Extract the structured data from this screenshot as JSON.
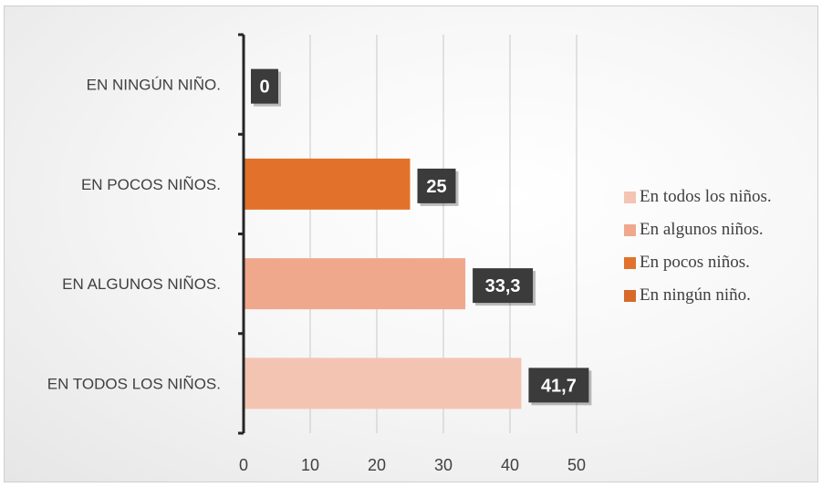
{
  "chart_data": {
    "type": "bar",
    "orientation": "horizontal",
    "categories": [
      "EN TODOS LOS NIÑOS.",
      "EN ALGUNOS NIÑOS.",
      "EN POCOS NIÑOS.",
      "EN NINGÚN NIÑO."
    ],
    "values": [
      41.7,
      33.3,
      25,
      0
    ],
    "data_labels": [
      "41,7",
      "33,3",
      "25",
      "0"
    ],
    "bar_colors": [
      "#f4c4b2",
      "#f0a88c",
      "#e2722b",
      "#d7692a"
    ],
    "xlim": [
      0,
      50
    ],
    "x_ticks": [
      "0",
      "10",
      "20",
      "30",
      "40",
      "50"
    ],
    "grid": true,
    "legend_position": "right",
    "legend": [
      {
        "label": "En todos los niños.",
        "color": "#f4c4b2"
      },
      {
        "label": "En algunos niños.",
        "color": "#f0a88c"
      },
      {
        "label": "En pocos niños.",
        "color": "#e2722b"
      },
      {
        "label": "En ningún niño.",
        "color": "#d7692a"
      }
    ],
    "colors": {
      "data_label_bg": "#3b3b3b",
      "axis": "#262626",
      "grid": "#c8c8c8"
    }
  }
}
